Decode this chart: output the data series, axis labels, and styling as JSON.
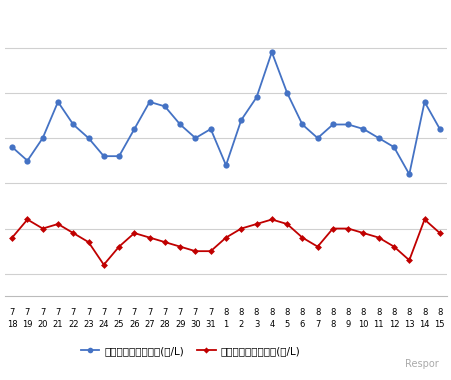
{
  "x_labels_row1": [
    "7",
    "7",
    "7",
    "7",
    "7",
    "7",
    "7",
    "7",
    "7",
    "7",
    "7",
    "7",
    "7",
    "7",
    "8",
    "8",
    "8",
    "8",
    "8",
    "8",
    "8",
    "8",
    "8",
    "8",
    "8",
    "8",
    "8",
    "8",
    "8"
  ],
  "x_labels_row2": [
    "18",
    "19",
    "20",
    "21",
    "22",
    "23",
    "24",
    "25",
    "26",
    "27",
    "28",
    "29",
    "30",
    "31",
    "1",
    "2",
    "3",
    "4",
    "5",
    "6",
    "7",
    "8",
    "9",
    "10",
    "11",
    "12",
    "13",
    "14",
    "15"
  ],
  "blue_y": [
    138,
    135,
    140,
    148,
    143,
    140,
    136,
    136,
    142,
    148,
    147,
    143,
    140,
    142,
    134,
    144,
    149,
    159,
    150,
    143,
    140,
    143,
    143,
    142,
    140,
    138,
    132,
    148,
    142
  ],
  "red_y": [
    118,
    122,
    120,
    121,
    119,
    117,
    112,
    116,
    119,
    118,
    117,
    116,
    115,
    115,
    118,
    120,
    121,
    122,
    121,
    118,
    116,
    120,
    120,
    119,
    118,
    116,
    113,
    122,
    119
  ],
  "blue_color": "#4472C4",
  "red_color": "#C00000",
  "bg_color": "#FFFFFF",
  "grid_color": "#D0D0D0",
  "legend_blue": "レギュラー看板価格(円/L)",
  "legend_red": "レギュラー実売価格(円/L)",
  "ylim": [
    105,
    168
  ],
  "y_gridlines": [
    110,
    120,
    130,
    140,
    150,
    160
  ]
}
